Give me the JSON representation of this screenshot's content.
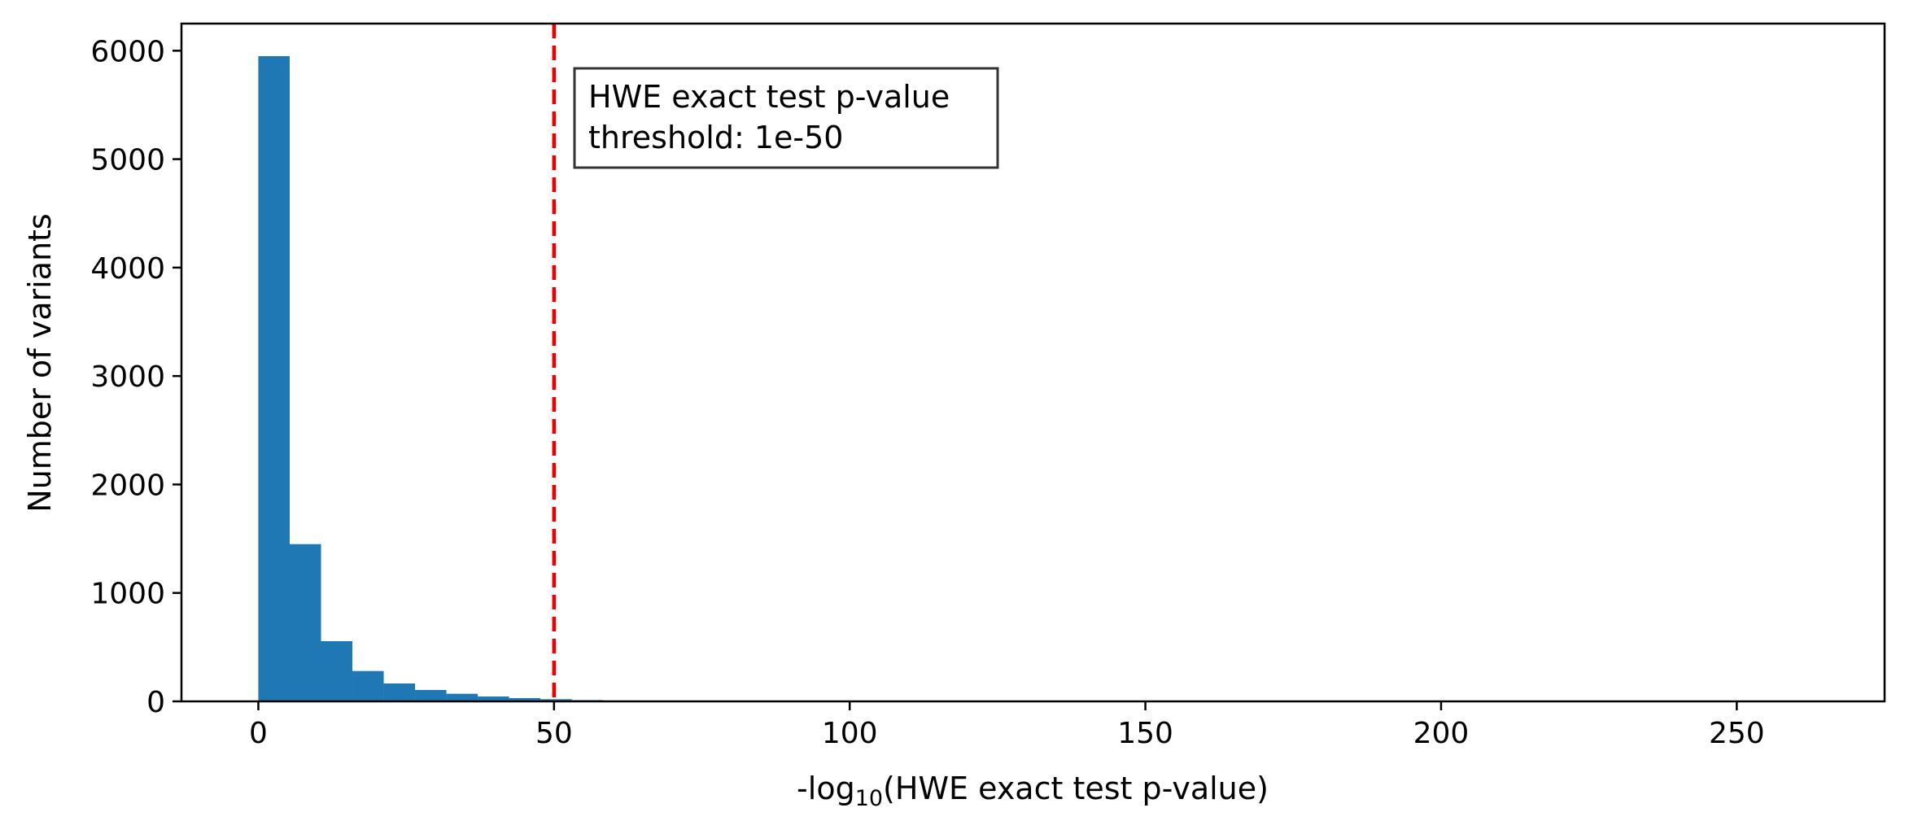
{
  "chart_data": {
    "type": "bar",
    "title": "",
    "xlabel_prefix": "-log",
    "xlabel_sub": "10",
    "xlabel_suffix": "(HWE exact test p-value)",
    "ylabel": "Number of variants",
    "xlim": [
      -13,
      275
    ],
    "ylim": [
      0,
      6250
    ],
    "grid": false,
    "bin_width": 5.3,
    "bin_start": 0,
    "values": [
      5950,
      1450,
      555,
      280,
      165,
      105,
      70,
      45,
      30,
      20,
      12,
      8,
      5,
      3,
      3,
      2,
      2,
      1,
      0,
      1,
      1,
      0,
      0,
      0,
      0,
      0,
      0,
      0,
      0,
      0,
      0,
      0,
      0,
      0,
      0,
      0,
      0,
      0,
      0,
      0,
      0,
      0,
      0,
      0,
      0,
      0,
      0,
      0,
      1,
      0
    ],
    "bar_color": "#1f77b4",
    "threshold": {
      "x": 50,
      "color": "#ee0000"
    },
    "x_ticks": [
      0,
      50,
      100,
      150,
      200,
      250
    ],
    "x_tick_labels": [
      "0",
      "50",
      "100",
      "150",
      "200",
      "250"
    ],
    "y_ticks": [
      0,
      1000,
      2000,
      3000,
      4000,
      5000,
      6000
    ],
    "y_tick_labels": [
      "0",
      "1000",
      "2000",
      "3000",
      "4000",
      "5000",
      "6000"
    ],
    "annotation": {
      "line1": "HWE exact test p-value",
      "line2": "threshold: 1e-50"
    }
  }
}
